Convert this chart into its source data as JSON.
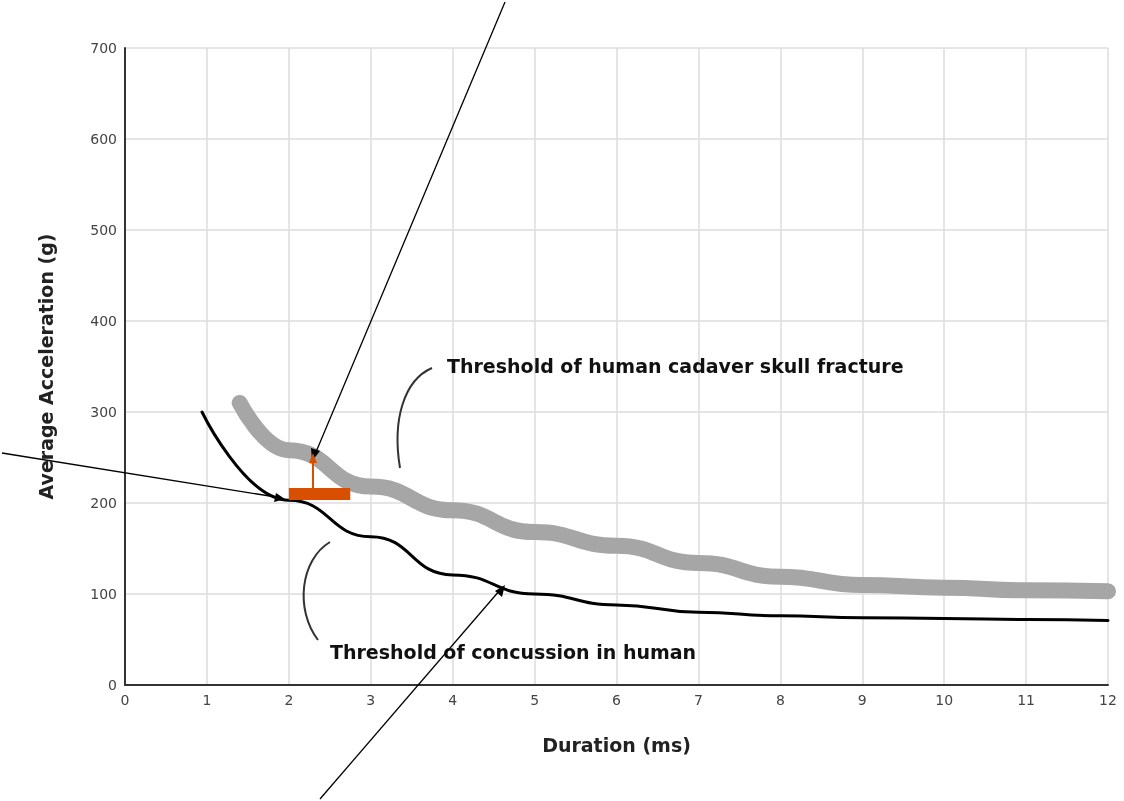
{
  "chart_data": {
    "type": "line",
    "xlabel": "Duration (ms)",
    "ylabel": "Average Acceleration (g)",
    "xlim": [
      0,
      12
    ],
    "xticks": [
      0,
      1,
      2,
      3,
      4,
      5,
      6,
      7,
      8,
      9,
      10,
      11,
      12
    ],
    "ylim": [
      0,
      700
    ],
    "yticks": [
      0,
      100,
      200,
      300,
      400,
      500,
      600,
      700
    ],
    "grid": true,
    "marker": "none",
    "line_style": "solid",
    "series": [
      {
        "color": "#a6a6a6",
        "x": [
          1.4,
          2,
          3,
          4,
          5,
          6,
          7,
          8,
          9,
          10,
          11,
          12
        ],
        "values": [
          310,
          258,
          218,
          192,
          168,
          153,
          134,
          119,
          110,
          107,
          104,
          103
        ]
      },
      {
        "color": "#000000",
        "x": [
          0.94,
          2,
          3,
          4,
          5,
          6,
          7,
          8,
          9,
          10,
          11,
          12
        ],
        "values": [
          300,
          203,
          163,
          121,
          100,
          88,
          80,
          76,
          74,
          73,
          72,
          71
        ]
      },
      {
        "color": "#d94f00",
        "x": [
          2,
          2.75
        ],
        "values": [
          210,
          210
        ]
      }
    ],
    "annotations": [
      "Threshold of human cadaver skull fracture",
      "Threshold of concussion in human"
    ]
  }
}
